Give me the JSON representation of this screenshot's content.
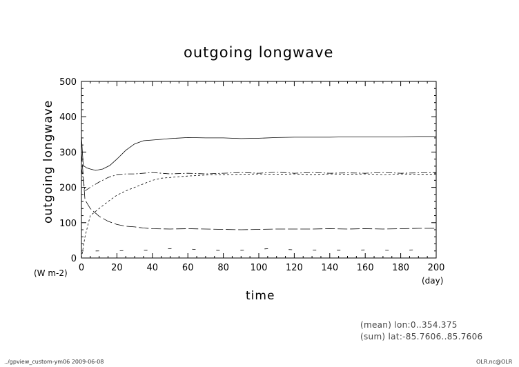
{
  "chart_data": {
    "type": "line",
    "title": "outgoing longwave",
    "xlabel": "time",
    "ylabel": "outgoing longwave",
    "x_unit": "(day)",
    "y_unit": "(W m-2)",
    "xlim": [
      0,
      200
    ],
    "ylim": [
      0,
      500
    ],
    "xticks": [
      0,
      20,
      40,
      60,
      80,
      100,
      120,
      140,
      160,
      180,
      200
    ],
    "yticks": [
      0,
      100,
      200,
      300,
      400,
      500
    ],
    "grid": false,
    "series": [
      {
        "style": "solid",
        "x": [
          0,
          1,
          3,
          5,
          8,
          12,
          16,
          20,
          25,
          30,
          35,
          40,
          45,
          50,
          60,
          70,
          80,
          90,
          100,
          110,
          120,
          130,
          140,
          150,
          160,
          170,
          180,
          190,
          200
        ],
        "y": [
          345,
          262,
          255,
          252,
          248,
          252,
          262,
          280,
          305,
          323,
          332,
          334,
          336,
          338,
          341,
          340,
          340,
          338,
          339,
          341,
          342,
          342,
          342,
          343,
          343,
          343,
          343,
          344,
          344
        ]
      },
      {
        "style": "dashdot",
        "x": [
          0,
          2,
          5,
          10,
          15,
          20,
          25,
          30,
          40,
          50,
          60,
          70,
          80,
          90,
          100,
          110,
          120,
          130,
          140,
          150,
          160,
          170,
          180,
          190,
          200
        ],
        "y": [
          255,
          190,
          200,
          215,
          228,
          236,
          238,
          238,
          242,
          238,
          240,
          238,
          240,
          242,
          240,
          243,
          240,
          242,
          240,
          241,
          240,
          242,
          240,
          241,
          242
        ]
      },
      {
        "style": "dashed",
        "x": [
          0,
          2,
          5,
          10,
          15,
          20,
          25,
          30,
          35,
          40,
          45,
          50,
          55,
          60,
          70,
          80,
          90,
          100,
          110,
          120,
          130,
          140,
          150,
          160,
          170,
          180,
          190,
          200
        ],
        "y": [
          0,
          60,
          120,
          140,
          160,
          178,
          190,
          200,
          210,
          220,
          226,
          228,
          230,
          232,
          235,
          236,
          237,
          238,
          237,
          238,
          236,
          238,
          237,
          238,
          236,
          238,
          237,
          237
        ]
      },
      {
        "style": "longdash",
        "x": [
          0,
          2,
          5,
          10,
          15,
          20,
          25,
          30,
          35,
          40,
          50,
          60,
          70,
          80,
          90,
          100,
          110,
          120,
          130,
          140,
          150,
          160,
          170,
          180,
          190,
          200
        ],
        "y": [
          300,
          165,
          140,
          118,
          104,
          95,
          90,
          88,
          85,
          83,
          82,
          83,
          82,
          81,
          80,
          81,
          82,
          82,
          82,
          83,
          82,
          83,
          82,
          83,
          84,
          84
        ]
      },
      {
        "style": "sparse",
        "x": [
          8,
          26,
          40,
          53,
          65,
          80,
          92,
          107,
          120,
          136,
          150,
          163,
          178,
          192
        ],
        "y": [
          20,
          21,
          22,
          28,
          24,
          21,
          22,
          27,
          23,
          22,
          22,
          23,
          21,
          24
        ]
      }
    ]
  },
  "footer": {
    "info_line1": "(mean) lon:0..354.375",
    "info_line2": "(sum) lat:-85.7606..85.7606",
    "left_note": "../gpview_custom-ym06  2009-06-08",
    "right_note": "OLR.nc@OLR"
  }
}
